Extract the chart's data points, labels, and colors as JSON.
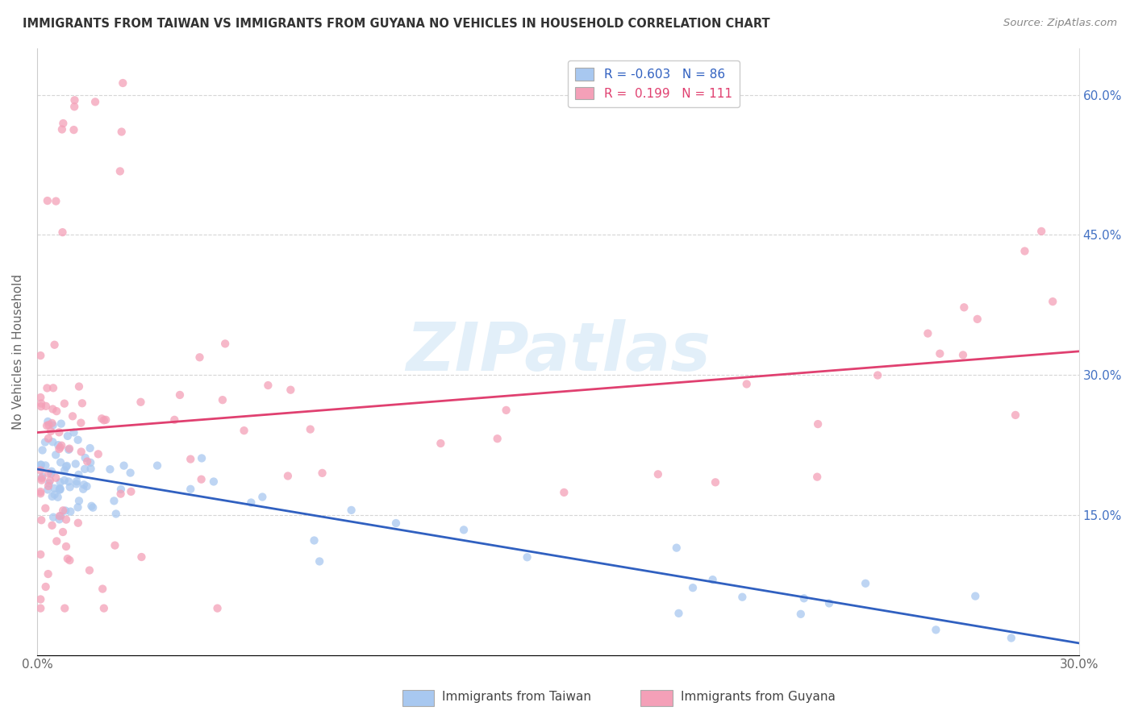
{
  "title": "IMMIGRANTS FROM TAIWAN VS IMMIGRANTS FROM GUYANA NO VEHICLES IN HOUSEHOLD CORRELATION CHART",
  "source": "Source: ZipAtlas.com",
  "ylabel": "No Vehicles in Household",
  "legend_taiwan_label": "Immigrants from Taiwan",
  "legend_guyana_label": "Immigrants from Guyana",
  "xlim": [
    0.0,
    0.3
  ],
  "ylim": [
    0.0,
    0.65
  ],
  "xtick_vals": [
    0.0,
    0.05,
    0.1,
    0.15,
    0.2,
    0.25,
    0.3
  ],
  "xtick_labels": [
    "0.0%",
    "",
    "",
    "",
    "",
    "",
    "30.0%"
  ],
  "ytick_vals": [
    0.0,
    0.15,
    0.3,
    0.45,
    0.6
  ],
  "ytick_right_labels": [
    "",
    "15.0%",
    "30.0%",
    "45.0%",
    "60.0%"
  ],
  "taiwan_color": "#a8c8f0",
  "guyana_color": "#f4a0b8",
  "taiwan_line_color": "#3060c0",
  "guyana_line_color": "#e04070",
  "taiwan_R": -0.603,
  "taiwan_N": 86,
  "guyana_R": 0.199,
  "guyana_N": 111,
  "watermark_text": "ZIPatlas",
  "background_color": "#ffffff",
  "grid_color": "#cccccc",
  "title_color": "#333333",
  "source_color": "#888888",
  "axis_label_color": "#666666",
  "right_tick_color": "#4472c4"
}
